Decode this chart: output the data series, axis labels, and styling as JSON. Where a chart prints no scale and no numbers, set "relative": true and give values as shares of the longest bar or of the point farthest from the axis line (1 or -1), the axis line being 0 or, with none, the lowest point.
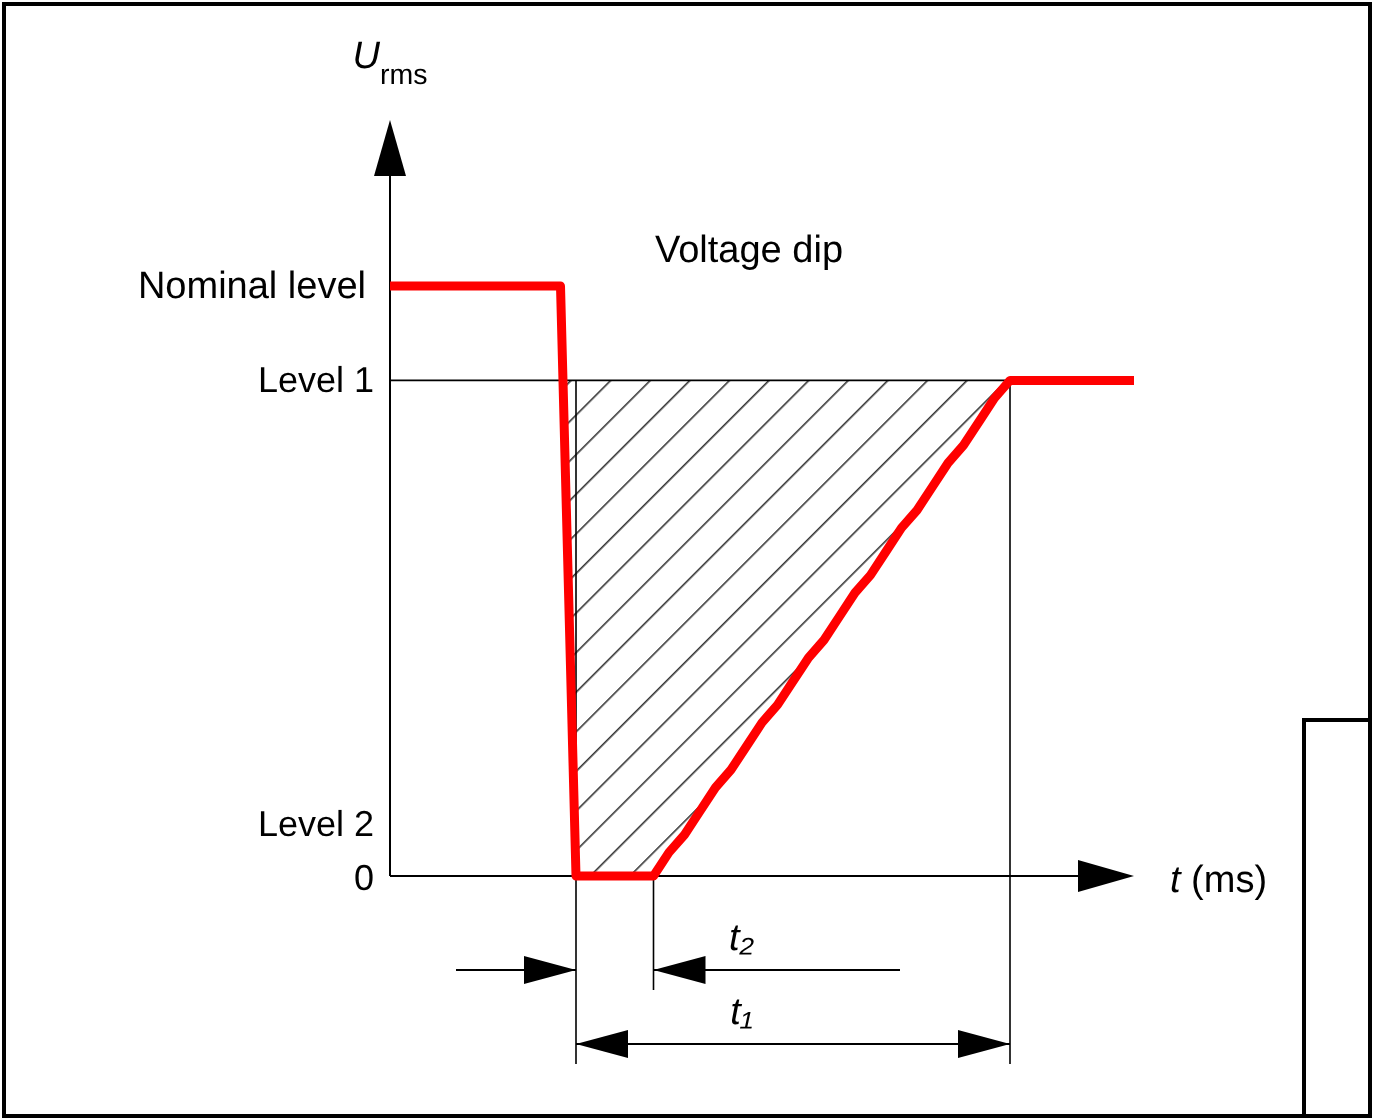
{
  "chart_data": {
    "type": "line",
    "relative": true,
    "xlabel": "t (ms)",
    "line_style": "solid",
    "categories": [
      null,
      null,
      null,
      null,
      null,
      null,
      null,
      null,
      null,
      null,
      null,
      null,
      null,
      null,
      null,
      null,
      null,
      null,
      null,
      null,
      null,
      null,
      null,
      null,
      null,
      null,
      null,
      null,
      null,
      null,
      null,
      null,
      null,
      null,
      null,
      null,
      null,
      null,
      null,
      null,
      null,
      null,
      null,
      null,
      null,
      null,
      null,
      null,
      null
    ],
    "series": [
      {
        "color": "#ff0000",
        "values": [
          1,
          1,
          1,
          1,
          1,
          1,
          1,
          1,
          1,
          1,
          1,
          1,
          0,
          0,
          0,
          0,
          0,
          0,
          0.04,
          0.07,
          0.11,
          0.15,
          0.18,
          0.22,
          0.26,
          0.29,
          0.33,
          0.37,
          0.4,
          0.44,
          0.48,
          0.51,
          0.55,
          0.59,
          0.62,
          0.66,
          0.7,
          0.73,
          0.77,
          0.81,
          0.84,
          0.84,
          0.84,
          0.84,
          0.84,
          0.84,
          0.84,
          0.84,
          0.84
        ]
      }
    ],
    "annotations": [
      "Voltage dip",
      "Nominal level",
      "Level 1",
      "Level 2",
      "0",
      "t₂",
      "t₁",
      "U$_{rms}$"
    ]
  }
}
